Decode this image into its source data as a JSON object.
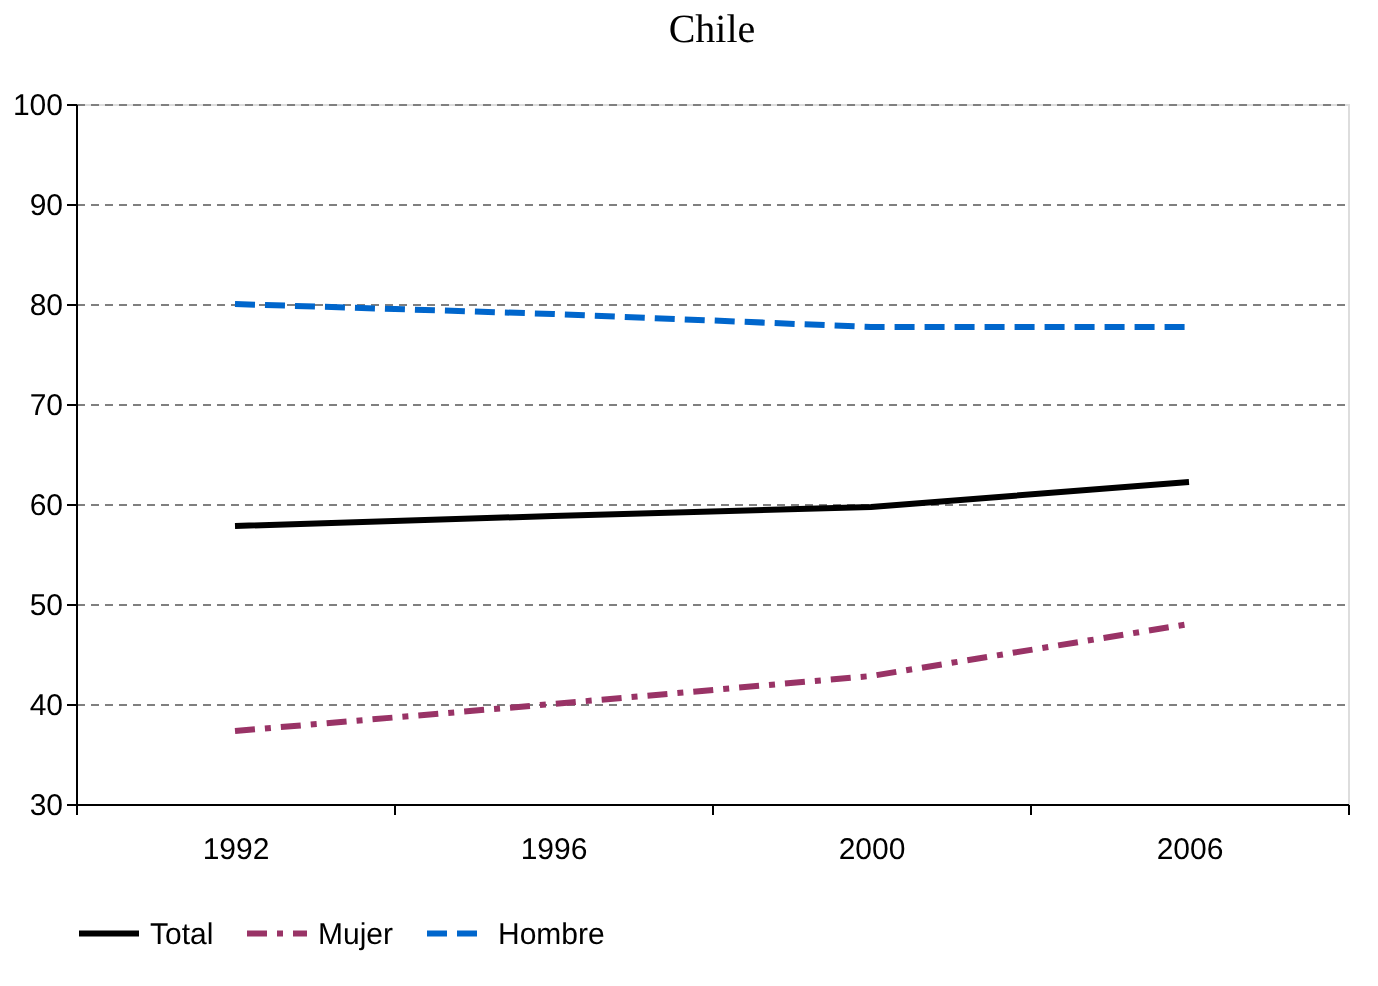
{
  "chart_data": {
    "type": "line",
    "title": "Chile",
    "categories": [
      "1992",
      "1996",
      "2000",
      "2006"
    ],
    "series": [
      {
        "name": "Total",
        "color": "#000000",
        "line_style": "solid",
        "values": [
          57.8,
          58.8,
          59.7,
          62.2
        ]
      },
      {
        "name": "Mujer",
        "color": "#993366",
        "line_style": "dashdot",
        "values": [
          37.3,
          40.0,
          42.8,
          48.0
        ]
      },
      {
        "name": "Hombre",
        "color": "#0066cc",
        "line_style": "dashed",
        "values": [
          80.0,
          79.0,
          77.7,
          77.7
        ]
      }
    ],
    "ylim": [
      30,
      100
    ],
    "yticks": [
      30,
      40,
      50,
      60,
      70,
      80,
      90,
      100
    ],
    "grid": "y",
    "legend": "bottom",
    "marker": "none"
  }
}
